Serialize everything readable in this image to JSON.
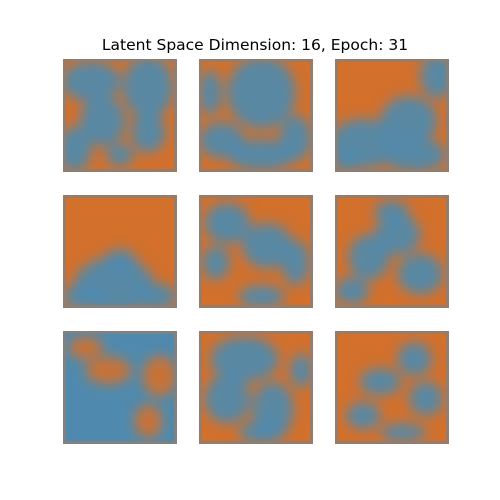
{
  "figure": {
    "title": "Latent Space Dimension: 16, Epoch: 31"
  },
  "palette": {
    "orange": "#d2702c",
    "blue": "#4f8aae",
    "mid": "#8e7a6c",
    "border": "#8a8078"
  },
  "samples": [
    {
      "id": 1,
      "base": "#d2702c",
      "blobs": [
        [
          0.25,
          0.2,
          0.26,
          0.18
        ],
        [
          0.75,
          0.25,
          0.22,
          0.28
        ],
        [
          0.35,
          0.55,
          0.2,
          0.22
        ],
        [
          0.1,
          0.8,
          0.15,
          0.2
        ],
        [
          0.75,
          0.65,
          0.15,
          0.18
        ],
        [
          0.5,
          0.85,
          0.12,
          0.1
        ]
      ]
    },
    {
      "id": 2,
      "base": "#d2702c",
      "blobs": [
        [
          0.55,
          0.3,
          0.3,
          0.32
        ],
        [
          0.2,
          0.72,
          0.2,
          0.16
        ],
        [
          0.55,
          0.85,
          0.3,
          0.14
        ],
        [
          0.85,
          0.7,
          0.14,
          0.2
        ],
        [
          0.1,
          0.3,
          0.1,
          0.2
        ]
      ]
    },
    {
      "id": 3,
      "base": "#d2702c",
      "blobs": [
        [
          0.9,
          0.15,
          0.15,
          0.2
        ],
        [
          0.25,
          0.75,
          0.3,
          0.22
        ],
        [
          0.65,
          0.55,
          0.25,
          0.22
        ],
        [
          0.7,
          0.85,
          0.28,
          0.15
        ],
        [
          0.1,
          0.9,
          0.12,
          0.1
        ]
      ]
    },
    {
      "id": 4,
      "base": "#d2702c",
      "blobs": [
        [
          0.45,
          0.8,
          0.35,
          0.25
        ],
        [
          0.2,
          0.9,
          0.2,
          0.12
        ],
        [
          0.8,
          0.9,
          0.2,
          0.12
        ],
        [
          0.5,
          0.6,
          0.15,
          0.12
        ]
      ]
    },
    {
      "id": 5,
      "base": "#d2702c",
      "blobs": [
        [
          0.25,
          0.25,
          0.2,
          0.18
        ],
        [
          0.6,
          0.45,
          0.22,
          0.2
        ],
        [
          0.15,
          0.6,
          0.12,
          0.15
        ],
        [
          0.85,
          0.6,
          0.12,
          0.2
        ],
        [
          0.55,
          0.9,
          0.2,
          0.1
        ]
      ]
    },
    {
      "id": 6,
      "base": "#d2702c",
      "blobs": [
        [
          0.55,
          0.35,
          0.2,
          0.18
        ],
        [
          0.3,
          0.55,
          0.18,
          0.2
        ],
        [
          0.75,
          0.7,
          0.2,
          0.18
        ],
        [
          0.15,
          0.85,
          0.15,
          0.12
        ],
        [
          0.5,
          0.15,
          0.15,
          0.1
        ]
      ]
    },
    {
      "id": 7,
      "base": "#4f8aae",
      "blobs_orange": [
        [
          0.4,
          0.35,
          0.2,
          0.12
        ],
        [
          0.85,
          0.4,
          0.15,
          0.18
        ],
        [
          0.2,
          0.15,
          0.15,
          0.1
        ],
        [
          0.75,
          0.8,
          0.12,
          0.15
        ]
      ]
    },
    {
      "id": 8,
      "base": "#d2702c",
      "blobs": [
        [
          0.4,
          0.25,
          0.3,
          0.2
        ],
        [
          0.25,
          0.6,
          0.2,
          0.22
        ],
        [
          0.65,
          0.7,
          0.18,
          0.25
        ],
        [
          0.55,
          0.9,
          0.2,
          0.1
        ],
        [
          0.9,
          0.35,
          0.1,
          0.15
        ]
      ]
    },
    {
      "id": 9,
      "base": "#d2702c",
      "blobs": [
        [
          0.7,
          0.25,
          0.15,
          0.15
        ],
        [
          0.4,
          0.45,
          0.18,
          0.12
        ],
        [
          0.8,
          0.6,
          0.15,
          0.15
        ],
        [
          0.25,
          0.75,
          0.15,
          0.12
        ],
        [
          0.6,
          0.9,
          0.2,
          0.08
        ]
      ]
    }
  ]
}
